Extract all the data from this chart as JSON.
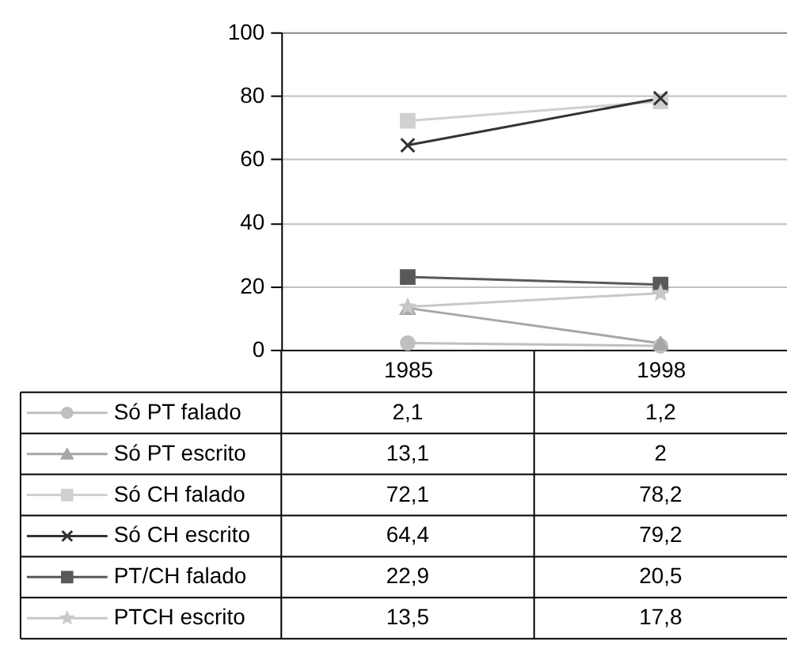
{
  "chart_data": {
    "type": "line",
    "categories": [
      "1985",
      "1998"
    ],
    "ylim": [
      0,
      100
    ],
    "yticks": [
      0,
      20,
      40,
      60,
      80,
      100
    ],
    "grid": "y",
    "legend": "bottom left",
    "series": [
      {
        "name": "Só PT falado",
        "color": "#bfbfbf",
        "marker": "circle",
        "values": [
          2.1,
          1.2
        ],
        "value_labels": [
          "2,1",
          "1,2"
        ]
      },
      {
        "name": "Só PT escrito",
        "color": "#a6a6a6",
        "marker": "triangle",
        "values": [
          13.1,
          2
        ],
        "value_labels": [
          "13,1",
          "2"
        ]
      },
      {
        "name": "Só CH falado",
        "color": "#d0d0d0",
        "marker": "square",
        "values": [
          72.1,
          78.2
        ],
        "value_labels": [
          "72,1",
          "78,2"
        ]
      },
      {
        "name": "Só CH escrito",
        "color": "#333333",
        "marker": "cross",
        "values": [
          64.4,
          79.2
        ],
        "value_labels": [
          "64,4",
          "79,2"
        ]
      },
      {
        "name": "PT/CH falado",
        "color": "#595959",
        "marker": "square",
        "values": [
          22.9,
          20.5
        ],
        "value_labels": [
          "22,9",
          "20,5"
        ]
      },
      {
        "name": "PTCH escrito",
        "color": "#c8c8c8",
        "marker": "star",
        "values": [
          13.5,
          17.8
        ],
        "value_labels": [
          "13,5",
          "17,8"
        ]
      }
    ]
  }
}
